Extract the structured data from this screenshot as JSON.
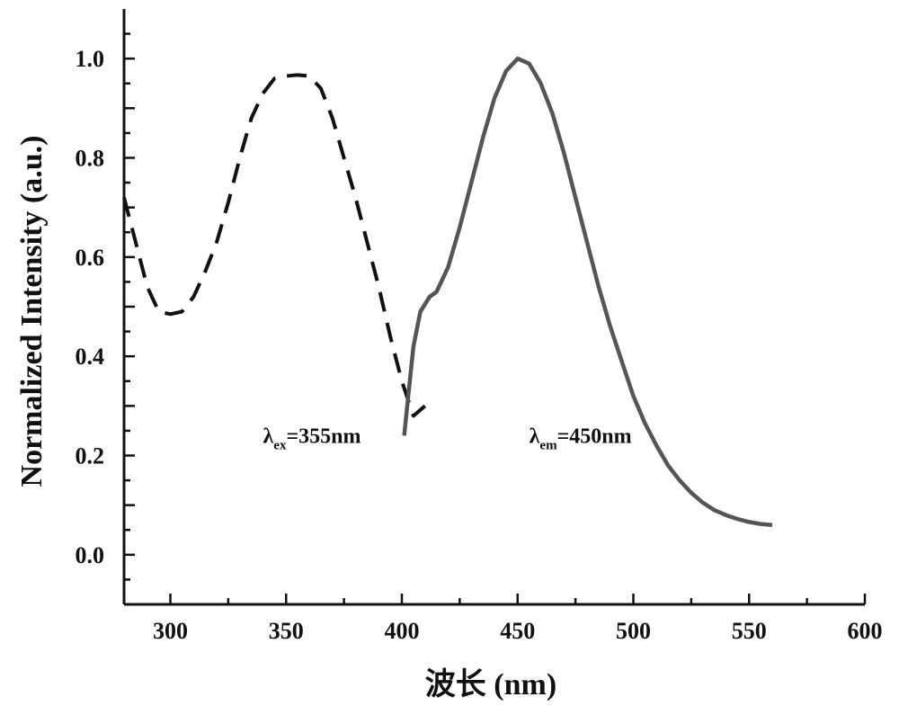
{
  "chart_data": {
    "type": "line",
    "xlabel": "波长 (nm)",
    "ylabel": "Normalized Intensity (a.u.)",
    "xlim": [
      280,
      600
    ],
    "ylim": [
      -0.1,
      1.1
    ],
    "x_ticks": [
      300,
      350,
      400,
      450,
      500,
      550,
      600
    ],
    "y_ticks": [
      0.0,
      0.2,
      0.4,
      0.6,
      0.8,
      1.0
    ],
    "x_tick_labels": [
      "300",
      "350",
      "400",
      "450",
      "500",
      "550",
      "600"
    ],
    "y_tick_labels": [
      "0.0",
      "0.2",
      "0.4",
      "0.6",
      "0.8",
      "1.0"
    ],
    "grid": false,
    "series": [
      {
        "line_style": "dashed",
        "color": "#111111",
        "x": [
          280,
          285,
          290,
          295,
          300,
          305,
          310,
          315,
          320,
          325,
          330,
          335,
          340,
          345,
          350,
          355,
          360,
          365,
          370,
          375,
          380,
          385,
          390,
          395,
          400,
          405,
          410
        ],
        "y": [
          0.72,
          0.63,
          0.54,
          0.49,
          0.485,
          0.49,
          0.52,
          0.57,
          0.63,
          0.71,
          0.8,
          0.88,
          0.93,
          0.96,
          0.965,
          0.967,
          0.965,
          0.94,
          0.88,
          0.8,
          0.72,
          0.63,
          0.54,
          0.44,
          0.35,
          0.28,
          0.3
        ]
      },
      {
        "line_style": "solid",
        "color": "#555555",
        "x": [
          401,
          403,
          405,
          408,
          412,
          415,
          420,
          425,
          430,
          435,
          440,
          445,
          450,
          455,
          460,
          465,
          470,
          475,
          480,
          485,
          490,
          495,
          500,
          505,
          510,
          515,
          520,
          525,
          530,
          535,
          540,
          545,
          550,
          555,
          560
        ],
        "y": [
          0.24,
          0.33,
          0.42,
          0.49,
          0.52,
          0.53,
          0.58,
          0.66,
          0.75,
          0.84,
          0.92,
          0.975,
          1.0,
          0.99,
          0.95,
          0.89,
          0.81,
          0.72,
          0.63,
          0.54,
          0.46,
          0.39,
          0.32,
          0.265,
          0.22,
          0.18,
          0.15,
          0.125,
          0.105,
          0.09,
          0.08,
          0.072,
          0.066,
          0.062,
          0.06
        ]
      }
    ],
    "annotations": [
      {
        "main": "λ",
        "sub": "ex",
        "rest": "=355nm",
        "x": 340,
        "y": 0.225
      },
      {
        "main": "λ",
        "sub": "em",
        "rest": "=450nm",
        "x": 455,
        "y": 0.225
      }
    ]
  }
}
